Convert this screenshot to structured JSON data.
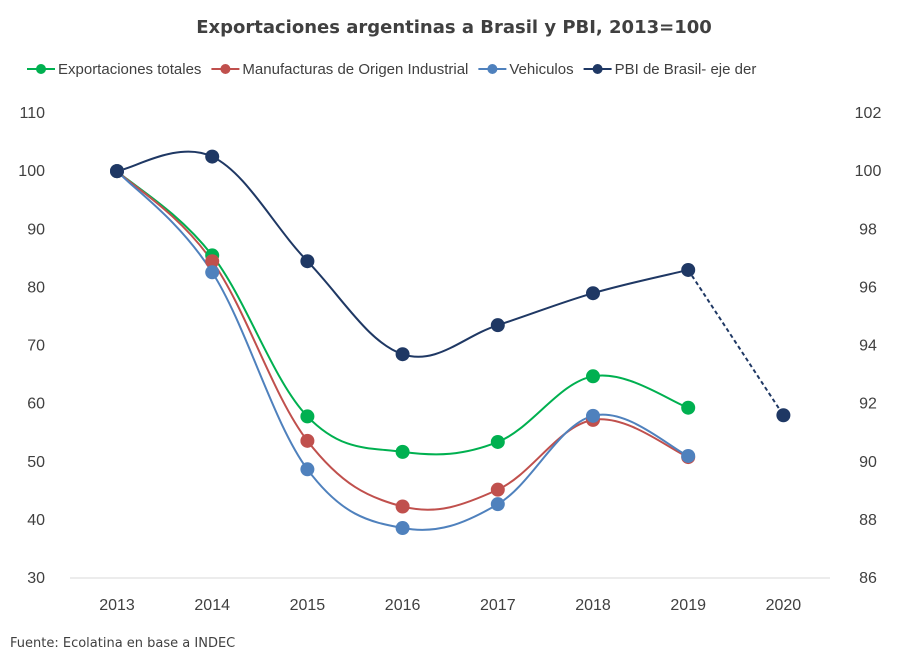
{
  "chart_data": {
    "type": "line",
    "title": "Exportaciones argentinas a Brasil y PBI, 2013=100",
    "categories": [
      "2013",
      "2014",
      "2015",
      "2016",
      "2017",
      "2018",
      "2019",
      "2020"
    ],
    "y_left": {
      "min": 30,
      "max": 110,
      "ticks": [
        30,
        40,
        50,
        60,
        70,
        80,
        90,
        100,
        110
      ]
    },
    "y_right": {
      "min": 86,
      "max": 102,
      "ticks": [
        86,
        88,
        90,
        92,
        94,
        96,
        98,
        100,
        102
      ]
    },
    "grid": false,
    "legend_position": "top",
    "series": [
      {
        "name": "Exportaciones totales",
        "color": "#00b050",
        "axis": "left",
        "values": [
          100,
          85.5,
          57.8,
          51.7,
          53.4,
          64.7,
          59.3,
          null
        ]
      },
      {
        "name": "Manufacturas de Origen Industrial",
        "color": "#c0504d",
        "axis": "left",
        "values": [
          100,
          84.5,
          53.6,
          42.3,
          45.2,
          57.2,
          50.8,
          null
        ]
      },
      {
        "name": "Vehiculos",
        "color": "#4f81bd",
        "axis": "left",
        "values": [
          100,
          82.6,
          48.7,
          38.6,
          42.7,
          57.9,
          51,
          null
        ]
      },
      {
        "name": "PBI de Brasil- eje der",
        "color": "#1f3864",
        "axis": "right",
        "values": [
          100,
          100.5,
          96.9,
          93.7,
          94.7,
          95.8,
          96.6,
          91.6
        ],
        "dashed_from_index": 6
      }
    ]
  },
  "source": "Fuente: Ecolatina en base a INDEC"
}
